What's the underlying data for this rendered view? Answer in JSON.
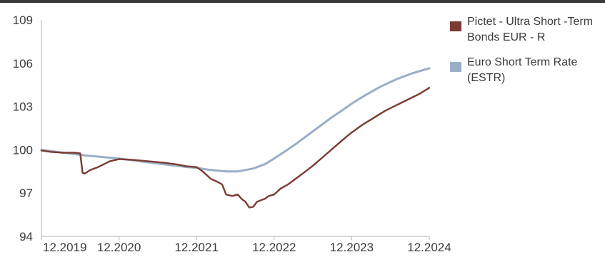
{
  "chart_data": {
    "type": "line",
    "title": "",
    "xlabel": "",
    "ylabel": "",
    "x_ticks": [
      "12.2019",
      "12.2020",
      "12.2021",
      "12.2022",
      "12.2023",
      "12.2024"
    ],
    "y_ticks": [
      94,
      97,
      100,
      103,
      106,
      109
    ],
    "ylim": [
      94,
      109
    ],
    "xlim": [
      2019.92,
      2024.92
    ],
    "grid": false,
    "legend_position": "right",
    "series": [
      {
        "name": "Pictet - Ultra Short -Term Bonds EUR - R",
        "color": "#7b3b32",
        "x": [
          2019.92,
          2020.05,
          2020.2,
          2020.35,
          2020.42,
          2020.45,
          2020.48,
          2020.55,
          2020.65,
          2020.8,
          2020.92,
          2021.1,
          2021.3,
          2021.5,
          2021.65,
          2021.8,
          2021.92,
          2022.0,
          2022.1,
          2022.18,
          2022.25,
          2022.3,
          2022.38,
          2022.45,
          2022.5,
          2022.55,
          2022.6,
          2022.65,
          2022.7,
          2022.75,
          2022.8,
          2022.85,
          2022.92,
          2023.0,
          2023.1,
          2023.2,
          2023.3,
          2023.42,
          2023.55,
          2023.7,
          2023.85,
          2023.92,
          2024.05,
          2024.2,
          2024.35,
          2024.5,
          2024.65,
          2024.8,
          2024.92
        ],
        "y": [
          99.95,
          99.85,
          99.8,
          99.8,
          99.75,
          98.4,
          98.35,
          98.6,
          98.8,
          99.2,
          99.35,
          99.3,
          99.2,
          99.1,
          99.0,
          98.85,
          98.8,
          98.5,
          98.0,
          97.8,
          97.6,
          96.9,
          96.8,
          96.9,
          96.6,
          96.4,
          96.0,
          96.05,
          96.4,
          96.5,
          96.6,
          96.8,
          96.9,
          97.3,
          97.6,
          98.0,
          98.4,
          98.9,
          99.5,
          100.2,
          100.9,
          101.2,
          101.7,
          102.2,
          102.7,
          103.1,
          103.5,
          103.9,
          104.3
        ]
      },
      {
        "name": "Euro Short Term Rate (ESTR)",
        "color": "#9aaec7",
        "x": [
          2019.92,
          2020.2,
          2020.5,
          2020.8,
          2020.92,
          2021.2,
          2021.5,
          2021.8,
          2021.92,
          2022.1,
          2022.3,
          2022.45,
          2022.55,
          2022.65,
          2022.8,
          2022.92,
          2023.05,
          2023.2,
          2023.35,
          2023.5,
          2023.65,
          2023.8,
          2023.92,
          2024.1,
          2024.3,
          2024.5,
          2024.7,
          2024.92
        ],
        "y": [
          100.0,
          99.8,
          99.6,
          99.45,
          99.4,
          99.2,
          99.0,
          98.8,
          98.75,
          98.6,
          98.5,
          98.5,
          98.6,
          98.7,
          99.0,
          99.4,
          99.85,
          100.4,
          101.0,
          101.6,
          102.2,
          102.75,
          103.2,
          103.8,
          104.4,
          104.9,
          105.3,
          105.65
        ]
      }
    ]
  }
}
